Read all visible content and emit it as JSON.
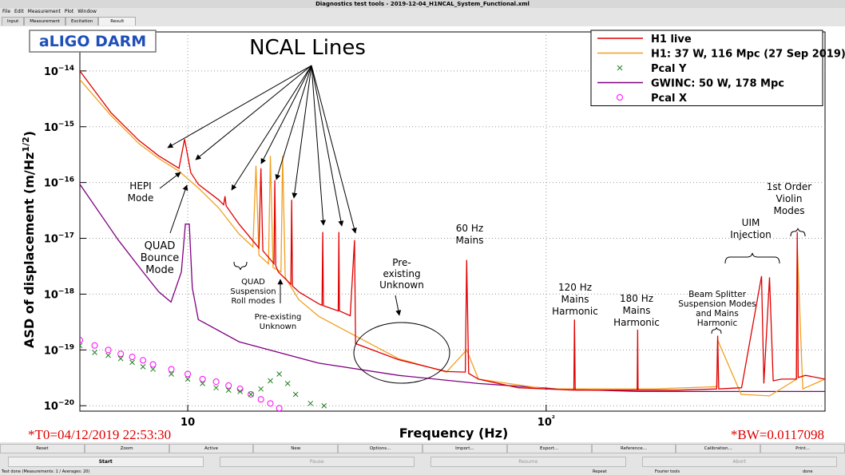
{
  "window": {
    "title": "Diagnostics test tools - 2019-12-04_H1NCAL_System_Functional.xml",
    "menu": [
      "File",
      "Edit",
      "Measurement",
      "Plot",
      "Window"
    ],
    "tabs": [
      "Input",
      "Measurement",
      "Excitation",
      "Result"
    ],
    "buttons": [
      "Reset",
      "Zoom",
      "Active",
      "New",
      "Options...",
      "Import...",
      "Export...",
      "Reference...",
      "Calibration...",
      "Print..."
    ],
    "controls": [
      "Start",
      "Pause",
      "Resume",
      "Abort"
    ],
    "status": [
      "Test done (Measurements: 1 / Averages: 20)",
      "Repeat",
      "Fourier tools",
      "done"
    ]
  },
  "chart_data": {
    "type": "line",
    "label_box": "aLIGO DARM",
    "x_label": "Frequency (Hz)",
    "y_label": "ASD of displacement (m/Hz1/2)",
    "t0": "*T0=04/12/2019 22:53:30",
    "bw": "*BW=0.0117098",
    "xscale": "log",
    "yscale": "log",
    "xlim": [
      5,
      600
    ],
    "ylim": [
      8e-21,
      5e-14
    ],
    "xticks": [
      10,
      {
        "value": 100,
        "label": "10²"
      }
    ],
    "yticks": [
      {
        "value": 1e-14,
        "label": "10−14"
      },
      {
        "value": 1e-15,
        "label": "10−15"
      },
      {
        "value": 1e-16,
        "label": "10−16"
      },
      {
        "value": 1e-17,
        "label": "10−17"
      },
      {
        "value": 1e-18,
        "label": "10−18"
      },
      {
        "value": 1e-19,
        "label": "10−19"
      },
      {
        "value": 1e-20,
        "label": "10−20"
      }
    ],
    "grid": true,
    "legend": "upper right",
    "series": [
      {
        "name": "H1 live",
        "color": "#e00000",
        "style": "line",
        "x": [
          5,
          6.1,
          7.3,
          8.3,
          9.45,
          9.8,
          10.2,
          10.7,
          12.2,
          12.6,
          12.7,
          12.8,
          13.9,
          15.8,
          16.0,
          16.2,
          17.4,
          17.5,
          17.6,
          17.9,
          19.4,
          19.5,
          19.6,
          20.4,
          23.2,
          23.7,
          23.8,
          23.9,
          26.3,
          26.4,
          26.5,
          28.4,
          29.2,
          29.4,
          38.7,
          52.7,
          59.5,
          60,
          60.8,
          64.7,
          83.6,
          119.5,
          120,
          120.5,
          140,
          179.5,
          180,
          180.5,
          233,
          299,
          301,
          303,
          351,
          399,
          405,
          420,
          430,
          454,
          499,
          502,
          505,
          529,
          600
        ],
        "values": [
          1e-14,
          1.8e-15,
          5.7e-16,
          3e-16,
          1.8e-16,
          6e-16,
          1.5e-16,
          9.3e-17,
          4.9e-17,
          4e-17,
          5.7e-17,
          3.8e-17,
          1.8e-17,
          6.7e-18,
          1.8e-16,
          6e-18,
          3.5e-18,
          1.1e-16,
          3.2e-18,
          2.5e-18,
          1.5e-18,
          4.9e-17,
          1.4e-18,
          1.1e-18,
          6.7e-19,
          6.3e-19,
          1.3e-17,
          6.2e-19,
          5e-19,
          1.3e-17,
          5e-19,
          4.1e-19,
          9.3e-18,
          1.3e-19,
          6.7e-20,
          4.1e-20,
          4e-20,
          4.1e-18,
          3.8e-20,
          3e-20,
          2.1e-20,
          1.9e-20,
          3.5e-19,
          1.9e-20,
          1.9e-20,
          1.9e-20,
          2.3e-19,
          1.9e-20,
          1.9e-20,
          2e-20,
          1.8e-19,
          2e-20,
          2.1e-20,
          2.1e-18,
          2.5e-20,
          2e-18,
          2.8e-20,
          3e-20,
          3e-20,
          1.3e-17,
          3.2e-20,
          3.5e-20,
          3e-20
        ]
      },
      {
        "name": "H1: 37 W, 116 Mpc (27 Sep 2019)",
        "color": "#f0a020",
        "style": "line",
        "x": [
          5,
          6.1,
          7.3,
          8.3,
          9.45,
          10.7,
          12.2,
          13.9,
          15.2,
          15.5,
          15.8,
          16.8,
          17,
          17.3,
          18.2,
          18.4,
          18.7,
          20.4,
          23.2,
          28.4,
          38.7,
          52.7,
          60,
          64.7,
          100,
          200,
          300,
          301,
          350,
          420,
          500,
          502,
          520,
          600
        ],
        "values": [
          7e-15,
          1.6e-15,
          5e-16,
          2.7e-16,
          1.6e-16,
          8e-17,
          3.5e-17,
          1.2e-17,
          7e-18,
          2e-16,
          5e-18,
          3.5e-18,
          3e-16,
          3e-18,
          2.5e-18,
          3e-16,
          2e-18,
          8e-19,
          4e-19,
          2e-19,
          7e-20,
          4e-20,
          1e-19,
          3e-20,
          2e-20,
          2e-20,
          2.2e-20,
          1.5e-19,
          1.6e-20,
          1.5e-20,
          3e-20,
          8e-18,
          2e-20,
          3e-20
        ]
      },
      {
        "name": "Pcal Y",
        "color": "#208020",
        "style": "x",
        "x": [
          5,
          5.5,
          6,
          6.5,
          7,
          7.5,
          8,
          9,
          10,
          11,
          12,
          13,
          14,
          15,
          16,
          17,
          18,
          19,
          20,
          22,
          24
        ],
        "values": [
          1.2e-19,
          9e-20,
          8e-20,
          7e-20,
          6e-20,
          5e-20,
          4.5e-20,
          3.7e-20,
          3e-20,
          2.5e-20,
          2.1e-20,
          1.9e-20,
          1.8e-20,
          1.6e-20,
          2e-20,
          2.8e-20,
          3.7e-20,
          2.5e-20,
          1.6e-20,
          1.1e-20,
          1e-20
        ]
      },
      {
        "name": "GWINC: 50 W, 178 Mpc",
        "color": "#800080",
        "style": "line",
        "x": [
          5,
          6.4,
          7.5,
          8.3,
          8.98,
          9.6,
          9.85,
          10.1,
          10.3,
          10.7,
          13.9,
          23.2,
          38.7,
          64.7,
          108,
          180,
          600
        ],
        "values": [
          9.3e-17,
          9.3e-18,
          2.5e-18,
          1.1e-18,
          7.2e-19,
          2.5e-18,
          1.8e-17,
          1.8e-17,
          1.3e-18,
          3.5e-19,
          1.4e-19,
          5.8e-20,
          3.5e-20,
          2.5e-20,
          2e-20,
          1.8e-20,
          1.8e-20
        ]
      },
      {
        "name": "Pcal X",
        "color": "#ff00ff",
        "style": "circle",
        "x": [
          5,
          5.5,
          6,
          6.5,
          7,
          7.5,
          8,
          9,
          10,
          11,
          12,
          13,
          14,
          15,
          16,
          17,
          18
        ],
        "values": [
          1.5e-19,
          1.2e-19,
          1e-19,
          8.5e-20,
          7.5e-20,
          6.5e-20,
          5.5e-20,
          4.5e-20,
          3.7e-20,
          3e-20,
          2.7e-20,
          2.3e-20,
          2e-20,
          1.6e-20,
          1.3e-20,
          1.1e-20,
          9e-21
        ]
      }
    ],
    "annotations": [
      [
        "NCAL Lines"
      ],
      [
        "HEPI",
        "Mode"
      ],
      [
        "QUAD",
        "Bounce",
        "Mode"
      ],
      [
        "QUAD",
        "Suspension",
        "Roll modes"
      ],
      [
        "Pre-existing",
        "Unknown"
      ],
      [
        "Pre-",
        "existing",
        "Unknown"
      ],
      [
        "60 Hz",
        "Mains"
      ],
      [
        "120 Hz",
        "Mains",
        "Harmonic"
      ],
      [
        "180 Hz",
        "Mains",
        "Harmonic"
      ],
      [
        "Beam Splitter",
        "Suspension Modes",
        "and Mains",
        "Harmonic"
      ],
      [
        "UIM",
        "Injection"
      ],
      [
        "1st Order",
        "Violin",
        "Modes"
      ]
    ]
  }
}
